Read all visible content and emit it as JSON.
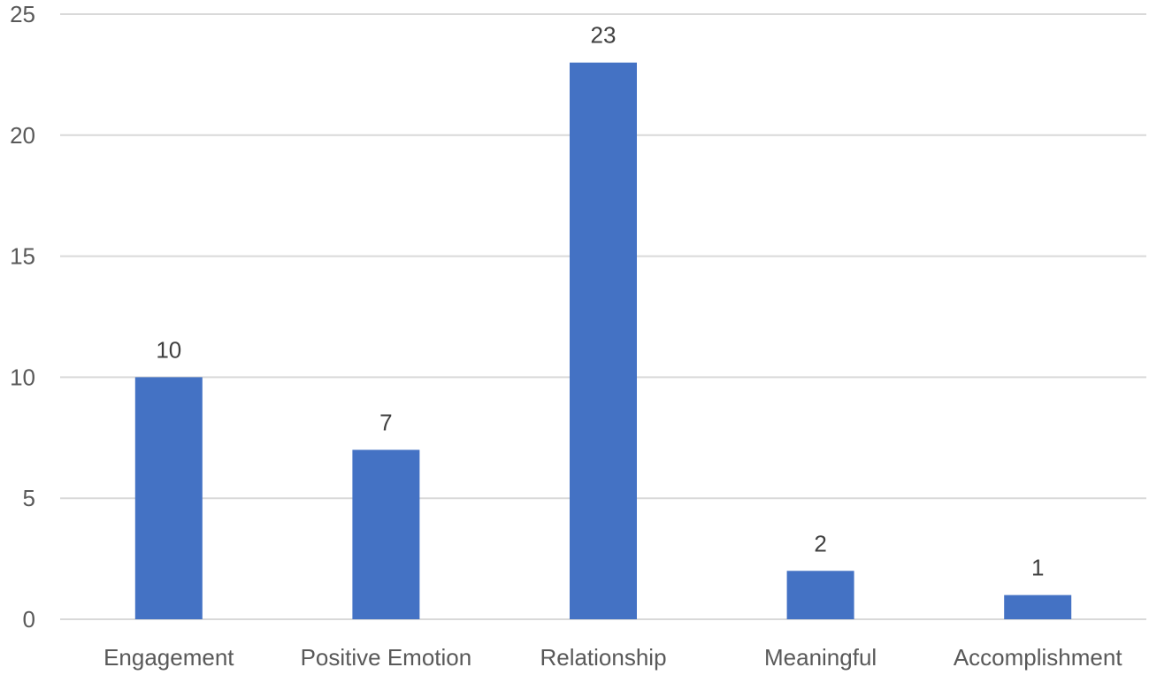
{
  "chart_data": {
    "type": "bar",
    "categories": [
      "Engagement",
      "Positive Emotion",
      "Relationship",
      "Meaningful",
      "Accomplishment"
    ],
    "values": [
      10,
      7,
      23,
      2,
      1
    ],
    "data_labels": [
      "10",
      "7",
      "23",
      "2",
      "1"
    ],
    "title": "",
    "xlabel": "",
    "ylabel": "",
    "ylim": [
      0,
      25
    ],
    "yticks": [
      0,
      5,
      10,
      15,
      20,
      25
    ],
    "ytick_labels": [
      "0",
      "5",
      "10",
      "15",
      "20",
      "25"
    ],
    "grid": true,
    "legend": "none",
    "colors": {
      "bar": "#4472c4",
      "grid": "#d9d9d9",
      "tick_text": "#595959",
      "label_text": "#404040"
    }
  }
}
